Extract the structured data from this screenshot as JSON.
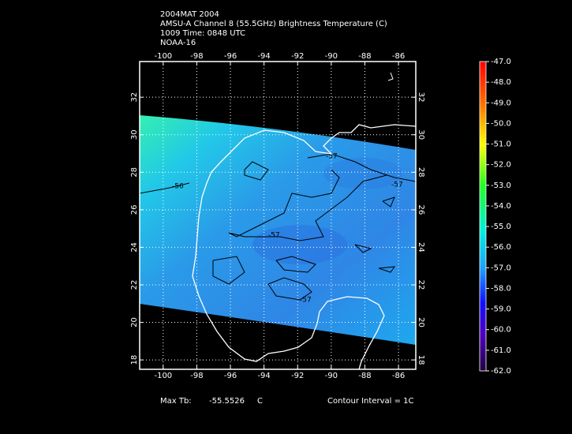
{
  "header": {
    "lines": [
      "2004MAT 2004",
      "AMSU-A Channel 8 (55.5GHz) Brightness Temperature (C)",
      "1009 Time: 0848 UTC",
      "NOAA-16"
    ]
  },
  "map": {
    "lon_lim": [
      -101.4,
      -84.97
    ],
    "lat_lim": [
      17.5,
      33.9
    ],
    "lon_ticks": [
      -100,
      -98,
      -96,
      -94,
      -92,
      -90,
      -88,
      -86
    ],
    "lat_ticks": [
      18,
      20,
      22,
      24,
      26,
      28,
      30,
      32
    ],
    "contour_labels": [
      "-57",
      "-56",
      "-57",
      "-57",
      "-57"
    ]
  },
  "colorbar": {
    "lim": [
      -62,
      -47
    ],
    "ticks": [
      {
        "value": -47,
        "label": "-47.0"
      },
      {
        "value": -48,
        "label": "-48.0"
      },
      {
        "value": -49,
        "label": "-49.0"
      },
      {
        "value": -50,
        "label": "-50.0"
      },
      {
        "value": -51,
        "label": "-51.0"
      },
      {
        "value": -52,
        "label": "-52.0"
      },
      {
        "value": -53,
        "label": "-53.0"
      },
      {
        "value": -54,
        "label": "-54.0"
      },
      {
        "value": -55,
        "label": "-55.0"
      },
      {
        "value": -56,
        "label": "-56.0"
      },
      {
        "value": -57,
        "label": "-57.0"
      },
      {
        "value": -58,
        "label": "-58.0"
      },
      {
        "value": -59,
        "label": "-59.0"
      },
      {
        "value": -60,
        "label": "-60.0"
      },
      {
        "value": -61,
        "label": "-61.0"
      },
      {
        "value": -62,
        "label": "-62.0"
      }
    ]
  },
  "footer": {
    "max_tb_label": "Max Tb:",
    "max_tb_value": "-55.5526",
    "unit": "C",
    "contour_interval": "Contour Interval = 1C"
  }
}
